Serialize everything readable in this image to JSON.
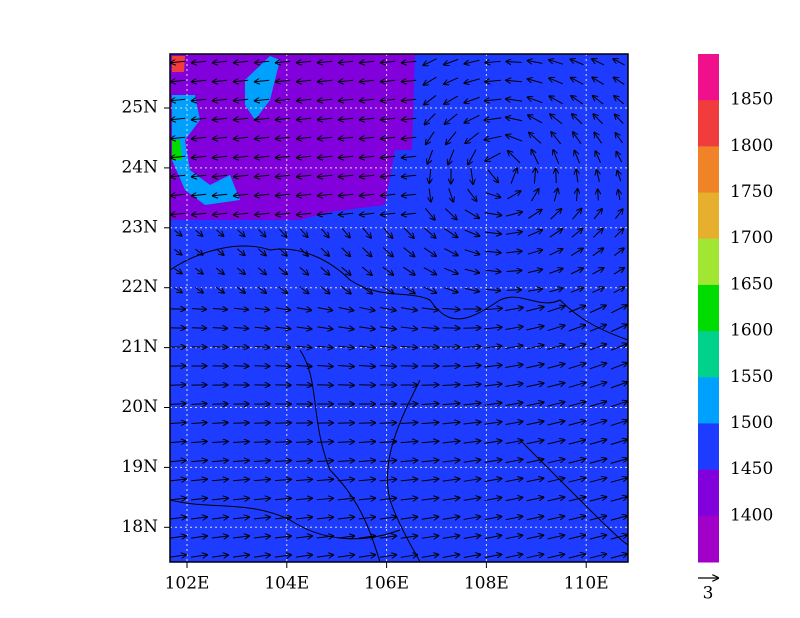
{
  "map": {
    "lat_labels": [
      "25N",
      "24N",
      "23N",
      "22N",
      "21N",
      "20N",
      "19N",
      "18N"
    ],
    "lon_labels": [
      "102E",
      "104E",
      "106E",
      "108E",
      "110E"
    ],
    "colorbar": {
      "labels": [
        "1850",
        "1800",
        "1750",
        "1700",
        "1650",
        "1600",
        "1550",
        "1500",
        "1450",
        "1400"
      ],
      "colors": [
        "#f0108c",
        "#f03c3c",
        "#f08228",
        "#e6af2d",
        "#a0e632",
        "#00dc00",
        "#00d28c",
        "#00a0ff",
        "#1e3cff",
        "#8200dc",
        "#a000c8"
      ]
    },
    "vector_reference": "3"
  }
}
